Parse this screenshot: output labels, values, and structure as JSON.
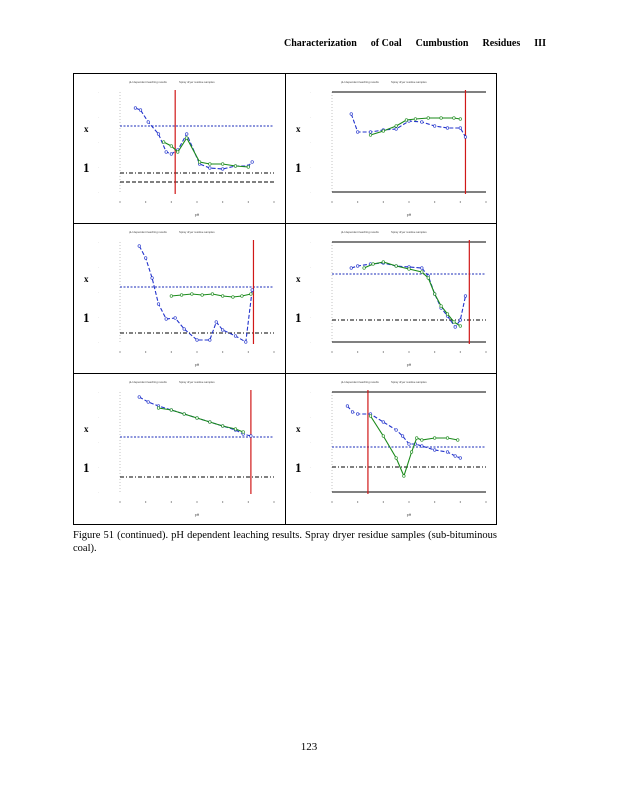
{
  "header": {
    "words": [
      "Characterization",
      "of Coal",
      "Cumbustion",
      "Residues",
      "III"
    ]
  },
  "figure": {
    "panel_title_words": [
      "pH dependent leaching results",
      "Spray dryer residue samples"
    ],
    "y_label_marks": [
      "x",
      "1"
    ],
    "x_axis_label": "pH"
  },
  "chart_data": [
    {
      "type": "line",
      "id": "p1",
      "xlim": [
        2,
        14
      ],
      "ylim": [
        0,
        10
      ],
      "upper_ref": 6.6,
      "lower_ref": 1.9,
      "lower_ref2": 1.0,
      "vline": 6.3,
      "topline": false,
      "series": [
        {
          "color": "#2233cc",
          "style": "dash",
          "x": [
            3.2,
            3.6,
            4.2,
            5.0,
            5.6,
            6.0,
            6.5,
            7.2,
            8.2,
            9.0,
            10.0,
            11.0,
            12.0,
            12.3
          ],
          "y": [
            8.4,
            8.2,
            7.0,
            5.8,
            4.0,
            3.8,
            4.2,
            5.8,
            2.8,
            2.4,
            2.3,
            2.6,
            2.6,
            3.0
          ]
        },
        {
          "color": "#1a8a1a",
          "style": "solid",
          "x": [
            5.4,
            6.0,
            6.5,
            7.2,
            8.2,
            9.0,
            10.0,
            11.0,
            12.0
          ],
          "y": [
            5.0,
            4.6,
            4.0,
            5.4,
            3.0,
            2.8,
            2.8,
            2.6,
            2.5
          ]
        }
      ]
    },
    {
      "type": "line",
      "id": "p2",
      "xlim": [
        2,
        14
      ],
      "ylim": [
        0,
        10
      ],
      "upper_ref": null,
      "lower_ref": null,
      "lower_ref2": null,
      "vline": 12.4,
      "topline": true,
      "series": [
        {
          "color": "#2233cc",
          "style": "dash",
          "x": [
            3.5,
            4.0,
            5.0,
            6.0,
            7.0,
            8.0,
            9.0,
            10.0,
            11.0,
            12.0,
            12.4
          ],
          "y": [
            7.8,
            6.0,
            6.0,
            6.2,
            6.3,
            7.1,
            7.0,
            6.6,
            6.4,
            6.4,
            5.5
          ]
        },
        {
          "color": "#1a8a1a",
          "style": "solid",
          "x": [
            5.0,
            6.0,
            7.0,
            7.8,
            8.5,
            9.5,
            10.5,
            11.5,
            12.0
          ],
          "y": [
            5.7,
            6.1,
            6.6,
            7.2,
            7.3,
            7.4,
            7.4,
            7.4,
            7.3
          ]
        }
      ]
    },
    {
      "type": "line",
      "id": "p3",
      "xlim": [
        2,
        14
      ],
      "ylim": [
        0,
        10
      ],
      "upper_ref": 5.5,
      "lower_ref": 0.9,
      "lower_ref2": null,
      "vline": 12.4,
      "topline": false,
      "series": [
        {
          "color": "#2233cc",
          "style": "dash",
          "x": [
            3.5,
            4.0,
            4.5,
            5.0,
            5.6,
            6.3,
            7.0,
            8.0,
            9.0,
            9.5,
            10.0,
            11.0,
            11.8,
            12.3
          ],
          "y": [
            9.6,
            8.4,
            6.4,
            3.8,
            2.3,
            2.4,
            1.3,
            0.2,
            0.2,
            2.0,
            1.2,
            0.6,
            0.0,
            5.2
          ]
        },
        {
          "color": "#1a8a1a",
          "style": "solid",
          "x": [
            6.0,
            6.8,
            7.6,
            8.4,
            9.2,
            10.0,
            10.8,
            11.5,
            12.2
          ],
          "y": [
            4.6,
            4.7,
            4.8,
            4.7,
            4.8,
            4.6,
            4.5,
            4.6,
            4.8
          ]
        }
      ]
    },
    {
      "type": "line",
      "id": "p4",
      "xlim": [
        2,
        14
      ],
      "ylim": [
        0,
        10
      ],
      "upper_ref": 6.8,
      "lower_ref": 2.2,
      "lower_ref2": null,
      "vline": 12.7,
      "topline": true,
      "series": [
        {
          "color": "#2233cc",
          "style": "dash",
          "x": [
            3.5,
            4.0,
            5.0,
            6.0,
            7.0,
            8.0,
            9.0,
            9.5,
            10.0,
            10.5,
            11.0,
            11.6,
            12.0,
            12.4
          ],
          "y": [
            7.4,
            7.6,
            7.8,
            7.9,
            7.6,
            7.5,
            7.4,
            6.6,
            4.8,
            3.4,
            2.6,
            1.5,
            2.2,
            4.6
          ]
        },
        {
          "color": "#1a8a1a",
          "style": "solid",
          "x": [
            4.5,
            5.2,
            6.0,
            7.0,
            8.0,
            9.0,
            9.5,
            10.0,
            10.5,
            11.0,
            11.5,
            12.0
          ],
          "y": [
            7.4,
            7.8,
            8.0,
            7.6,
            7.3,
            7.0,
            6.4,
            4.8,
            3.6,
            2.8,
            2.0,
            1.6
          ]
        }
      ]
    },
    {
      "type": "line",
      "id": "p5",
      "xlim": [
        2,
        14
      ],
      "ylim": [
        0,
        10
      ],
      "upper_ref": 5.5,
      "lower_ref": 1.5,
      "lower_ref2": null,
      "vline": 12.2,
      "topline": false,
      "series": [
        {
          "color": "#2233cc",
          "style": "dash",
          "x": [
            3.5,
            4.2,
            5.0,
            6.0,
            7.0,
            8.0,
            9.0,
            10.0,
            11.0,
            11.6,
            12.2
          ],
          "y": [
            9.5,
            9.0,
            8.6,
            8.2,
            7.8,
            7.4,
            7.0,
            6.6,
            6.2,
            5.8,
            5.6
          ]
        },
        {
          "color": "#1a8a1a",
          "style": "solid",
          "x": [
            5.0,
            6.0,
            7.0,
            8.0,
            9.0,
            10.0,
            11.0,
            11.6
          ],
          "y": [
            8.4,
            8.2,
            7.8,
            7.4,
            7.0,
            6.6,
            6.3,
            6.0
          ]
        }
      ]
    },
    {
      "type": "line",
      "id": "p6",
      "xlim": [
        2,
        14
      ],
      "ylim": [
        0,
        10
      ],
      "upper_ref": 4.5,
      "lower_ref": 2.5,
      "lower_ref2": null,
      "vline": 4.8,
      "topline": true,
      "series": [
        {
          "color": "#2233cc",
          "style": "dash",
          "x": [
            3.2,
            3.6,
            4.0,
            5.0,
            6.0,
            7.0,
            7.5,
            8.0,
            8.5,
            9.0,
            10.0,
            11.0,
            11.6,
            12.0
          ],
          "y": [
            8.6,
            8.0,
            7.8,
            7.8,
            7.0,
            6.2,
            5.6,
            4.8,
            4.8,
            4.6,
            4.2,
            4.0,
            3.6,
            3.4
          ]
        },
        {
          "color": "#1a8a1a",
          "style": "solid",
          "x": [
            5.0,
            6.0,
            7.0,
            7.6,
            8.2,
            8.6,
            9.0,
            10.0,
            11.0,
            11.8
          ],
          "y": [
            7.6,
            5.6,
            3.4,
            1.6,
            4.0,
            5.4,
            5.2,
            5.4,
            5.4,
            5.2
          ]
        }
      ]
    }
  ],
  "caption": {
    "text": "Figure 51 (continued).  pH dependent leaching results. Spray dryer residue samples (sub-bituminous coal)."
  },
  "page_number": "123"
}
